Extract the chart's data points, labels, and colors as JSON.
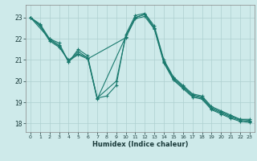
{
  "title": "",
  "xlabel": "Humidex (Indice chaleur)",
  "ylabel": "",
  "xlim": [
    -0.5,
    23.5
  ],
  "ylim": [
    17.6,
    23.6
  ],
  "yticks": [
    18,
    19,
    20,
    21,
    22,
    23
  ],
  "xticks": [
    0,
    1,
    2,
    3,
    4,
    5,
    6,
    7,
    8,
    9,
    10,
    11,
    12,
    13,
    14,
    15,
    16,
    17,
    18,
    19,
    20,
    21,
    22,
    23
  ],
  "bg_color": "#ceeaea",
  "grid_color": "#aed0d0",
  "line_color": "#1a7a6e",
  "line1_x": [
    0,
    1,
    2,
    3,
    4,
    5,
    6,
    7,
    8,
    9,
    10,
    11,
    12,
    13,
    14,
    15,
    16,
    17,
    18,
    19,
    20,
    21,
    22,
    23
  ],
  "line1_y": [
    23.0,
    22.7,
    22.0,
    21.8,
    20.9,
    21.5,
    21.2,
    19.2,
    19.3,
    19.8,
    22.2,
    23.1,
    23.2,
    22.6,
    21.0,
    20.2,
    19.8,
    19.4,
    19.3,
    18.8,
    18.6,
    18.4,
    18.2,
    18.2
  ],
  "line2_x": [
    0,
    1,
    2,
    3,
    4,
    5,
    6,
    7,
    9,
    10,
    11,
    12,
    13,
    14,
    15,
    16,
    17,
    18,
    19,
    20,
    21,
    22,
    23
  ],
  "line2_y": [
    23.0,
    22.6,
    21.9,
    21.6,
    21.0,
    21.3,
    21.1,
    19.2,
    20.0,
    22.1,
    23.0,
    23.15,
    22.5,
    20.9,
    20.1,
    19.7,
    19.3,
    19.2,
    18.7,
    18.5,
    18.3,
    18.15,
    18.1
  ],
  "line3_x": [
    0,
    2,
    3,
    4,
    5,
    6,
    7,
    10,
    11,
    12,
    13,
    14,
    15,
    16,
    17,
    18,
    19,
    20,
    21,
    22,
    23
  ],
  "line3_y": [
    23.0,
    22.0,
    21.7,
    20.9,
    21.4,
    21.1,
    19.15,
    22.1,
    23.0,
    23.15,
    22.5,
    20.95,
    20.15,
    19.75,
    19.35,
    19.25,
    18.75,
    18.55,
    18.35,
    18.2,
    18.15
  ],
  "line4_x": [
    0,
    1,
    2,
    3,
    4,
    5,
    6,
    10,
    11,
    12,
    13,
    14,
    15,
    16,
    17,
    18,
    19,
    20,
    21,
    22,
    23
  ],
  "line4_y": [
    23.0,
    22.65,
    21.95,
    21.65,
    20.95,
    21.25,
    21.05,
    22.05,
    22.95,
    23.05,
    22.45,
    20.85,
    20.05,
    19.65,
    19.25,
    19.15,
    18.65,
    18.45,
    18.25,
    18.1,
    18.05
  ]
}
